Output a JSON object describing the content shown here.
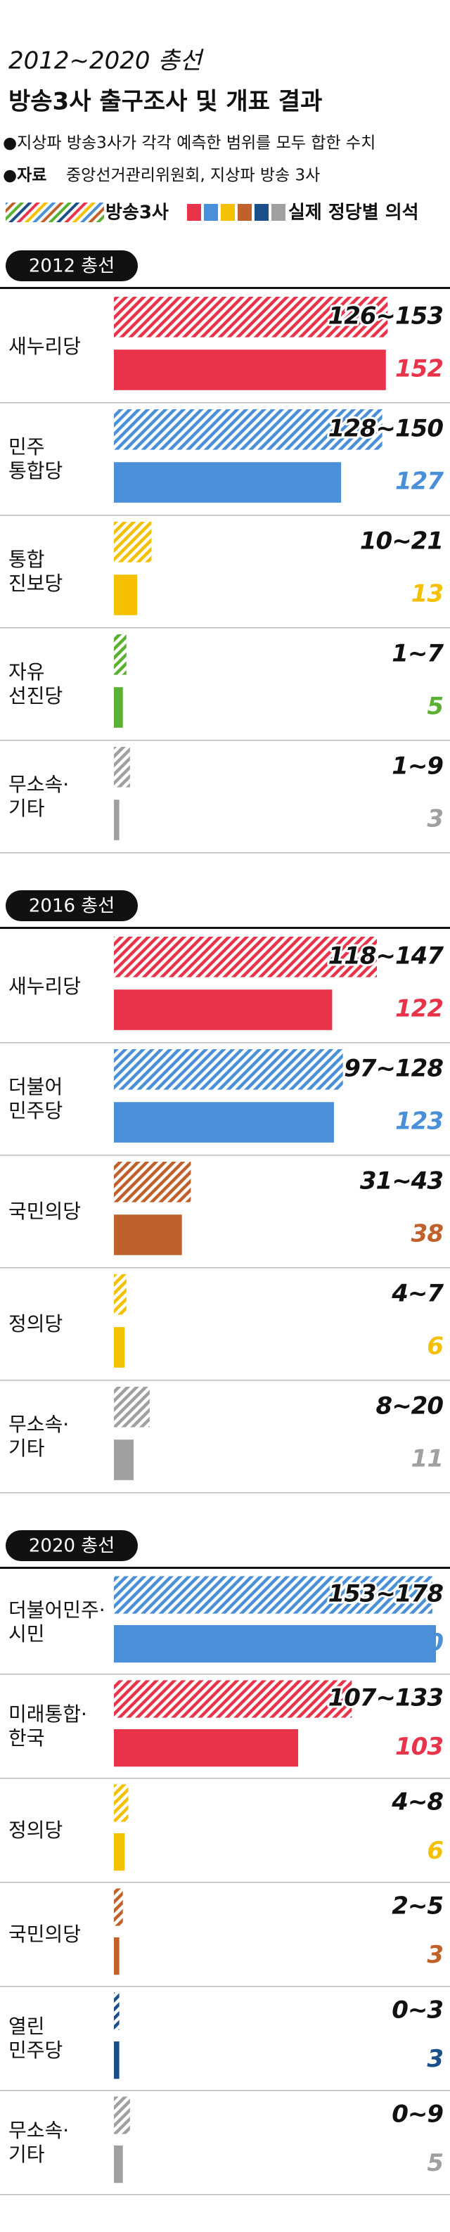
{
  "header": {
    "title": "2012~2020 총선",
    "subtitle": "방송3사 출구조사 및 개표 결과",
    "note": "●지상파 방송3사가 각각 예측한 범위를 모두 합한 수치",
    "source_label": "●자료",
    "source": "중앙선거관리위원회, 지상파 방송 3사"
  },
  "chart_data": [
    {
      "type": "bar",
      "title": "2012 총선",
      "xlim": [
        0,
        180
      ],
      "categories": [
        "새누리당",
        "민주\n통합당",
        "통합\n진보당",
        "자유\n선진당",
        "무소속·\n기타"
      ],
      "colors": [
        "#e8334a",
        "#4a90d9",
        "#f5c000",
        "#5ab031",
        "#a0a0a0"
      ],
      "series": [
        {
          "name": "방송3사",
          "low": [
            126,
            128,
            10,
            1,
            1
          ],
          "values": [
            153,
            150,
            21,
            7,
            9
          ],
          "value_labels": [
            "126~153",
            "128~150",
            "10~21",
            "1~7",
            "1~9"
          ]
        },
        {
          "name": "실제 정당별 의석",
          "values": [
            152,
            127,
            13,
            5,
            3
          ]
        }
      ]
    },
    {
      "type": "bar",
      "title": "2016 총선",
      "xlim": [
        0,
        180
      ],
      "categories": [
        "새누리당",
        "더불어\n민주당",
        "국민의당",
        "정의당",
        "무소속·\n기타"
      ],
      "colors": [
        "#e8334a",
        "#4a90d9",
        "#c0602a",
        "#f5c000",
        "#a0a0a0"
      ],
      "series": [
        {
          "name": "방송3사",
          "low": [
            118,
            97,
            31,
            4,
            8
          ],
          "values": [
            147,
            128,
            43,
            7,
            20
          ],
          "value_labels": [
            "118~147",
            "97~128",
            "31~43",
            "4~7",
            "8~20"
          ]
        },
        {
          "name": "실제 정당별 의석",
          "values": [
            122,
            123,
            38,
            6,
            11
          ]
        }
      ]
    },
    {
      "type": "bar",
      "title": "2020 총선",
      "xlim": [
        0,
        180
      ],
      "categories": [
        "더불어민주·\n시민",
        "미래통합·\n한국",
        "정의당",
        "국민의당",
        "열린\n민주당",
        "무소속·\n기타"
      ],
      "colors": [
        "#4a90d9",
        "#e8334a",
        "#f5c000",
        "#c0602a",
        "#1a4f8a",
        "#a0a0a0"
      ],
      "series": [
        {
          "name": "방송3사",
          "low": [
            153,
            107,
            4,
            2,
            0,
            0
          ],
          "values": [
            178,
            133,
            8,
            5,
            3,
            9
          ],
          "value_labels": [
            "153~178",
            "107~133",
            "4~8",
            "2~5",
            "0~3",
            "0~9"
          ]
        },
        {
          "name": "실제 정당별 의석",
          "values": [
            180,
            103,
            6,
            3,
            3,
            5
          ]
        }
      ]
    }
  ]
}
